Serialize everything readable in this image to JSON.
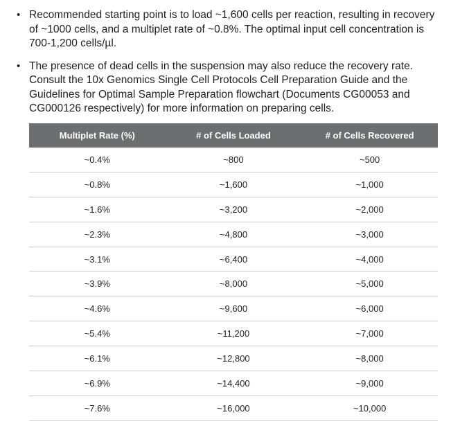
{
  "bullets": [
    {
      "lines": [
        "Recommended starting point is to load ~1,600 cells per reaction, resulting in recovery",
        "of ~1000 cells, and a multiplet rate of ~0.8%. The optimal input cell concentration is",
        "700-1,200 cells/µl."
      ]
    },
    {
      "lines": [
        "The presence of dead cells in the suspension may also reduce the recovery rate.",
        "Consult the 10x Genomics Single Cell Protocols Cell Preparation Guide and the",
        "Guidelines for Optimal Sample Preparation flowchart (Documents CG00053 and",
        "CG000126 respectively) for more information on preparing cells."
      ]
    }
  ],
  "table": {
    "headers": [
      "Multiplet Rate (%)",
      "# of Cells Loaded",
      "# of Cells Recovered"
    ],
    "rows": [
      [
        "~0.4%",
        "~800",
        "~500"
      ],
      [
        "~0.8%",
        "~1,600",
        "~1,000"
      ],
      [
        "~1.6%",
        "~3,200",
        "~2,000"
      ],
      [
        "~2.3%",
        "~4,800",
        "~3,000"
      ],
      [
        "~3.1%",
        "~6,400",
        "~4,000"
      ],
      [
        "~3.9%",
        "~8,000",
        "~5,000"
      ],
      [
        "~4.6%",
        "~9,600",
        "~6,000"
      ],
      [
        "~5.4%",
        "~11,200",
        "~7,000"
      ],
      [
        "~6.1%",
        "~12,800",
        "~8,000"
      ],
      [
        "~6.9%",
        "~14,400",
        "~9,000"
      ],
      [
        "~7.6%",
        "~16,000",
        "~10,000"
      ]
    ]
  }
}
